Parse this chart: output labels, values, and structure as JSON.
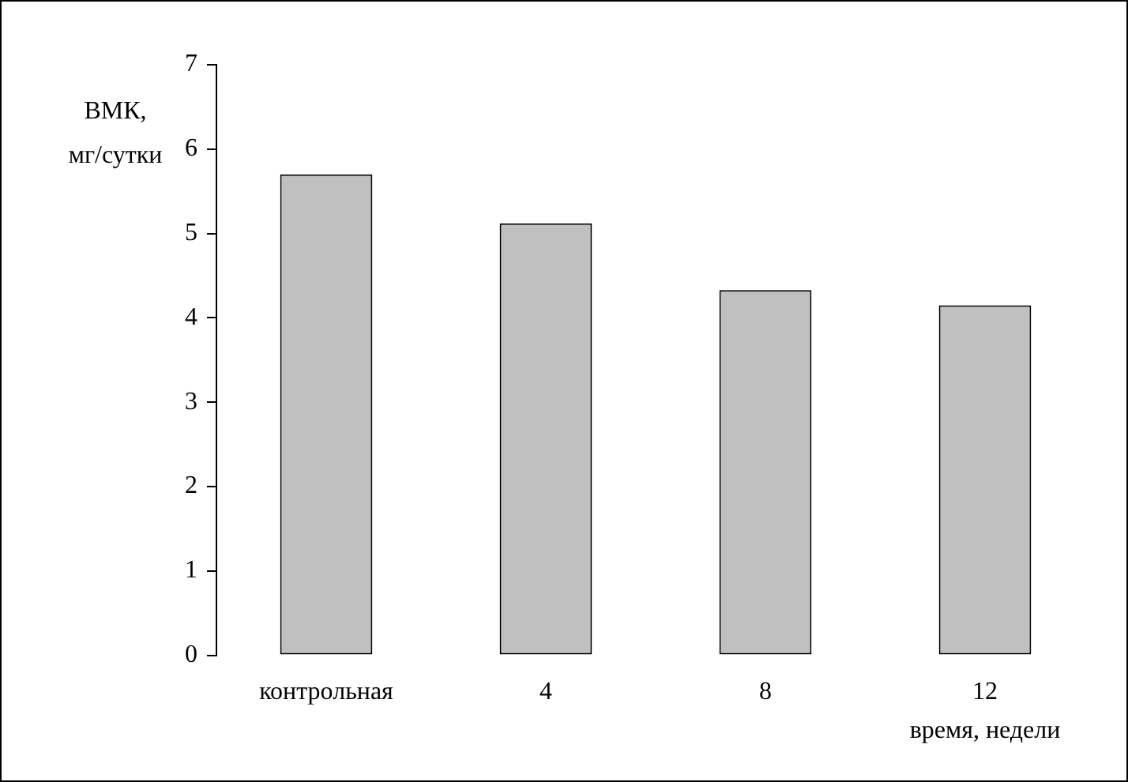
{
  "chart_data": {
    "type": "bar",
    "ylabel": "ВМК,\nмг/сутки",
    "xlabel": "время, недели",
    "categories": [
      "контрольная",
      "4",
      "8",
      "12"
    ],
    "values": [
      5.7,
      5.12,
      4.33,
      4.15
    ],
    "color": "#c0c0c0",
    "ylim": [
      0,
      7
    ],
    "yticks": [
      0,
      1,
      2,
      3,
      4,
      5,
      6,
      7
    ],
    "grid": false,
    "legend": false
  }
}
